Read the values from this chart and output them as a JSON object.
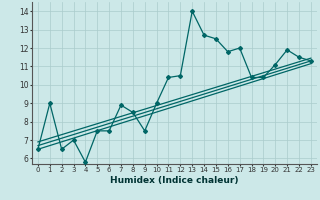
{
  "xlabel": "Humidex (Indice chaleur)",
  "bg_color": "#cce8e8",
  "grid_color": "#aacccc",
  "line_color": "#006666",
  "xlim": [
    -0.5,
    23.5
  ],
  "ylim": [
    5.7,
    14.5
  ],
  "xticks": [
    0,
    1,
    2,
    3,
    4,
    5,
    6,
    7,
    8,
    9,
    10,
    11,
    12,
    13,
    14,
    15,
    16,
    17,
    18,
    19,
    20,
    21,
    22,
    23
  ],
  "yticks": [
    6,
    7,
    8,
    9,
    10,
    11,
    12,
    13,
    14
  ],
  "main_series": [
    6.5,
    9.0,
    6.5,
    7.0,
    5.8,
    7.5,
    7.5,
    8.9,
    8.5,
    7.5,
    9.0,
    10.4,
    10.5,
    14.0,
    12.7,
    12.5,
    11.8,
    12.0,
    10.4,
    10.4,
    11.1,
    11.9,
    11.5,
    11.3
  ],
  "reg_lines": [
    {
      "x0": 0,
      "y0": 6.5,
      "x1": 23,
      "y1": 11.15
    },
    {
      "x0": 0,
      "y0": 6.7,
      "x1": 23,
      "y1": 11.3
    },
    {
      "x0": 0,
      "y0": 6.9,
      "x1": 23,
      "y1": 11.45
    }
  ]
}
